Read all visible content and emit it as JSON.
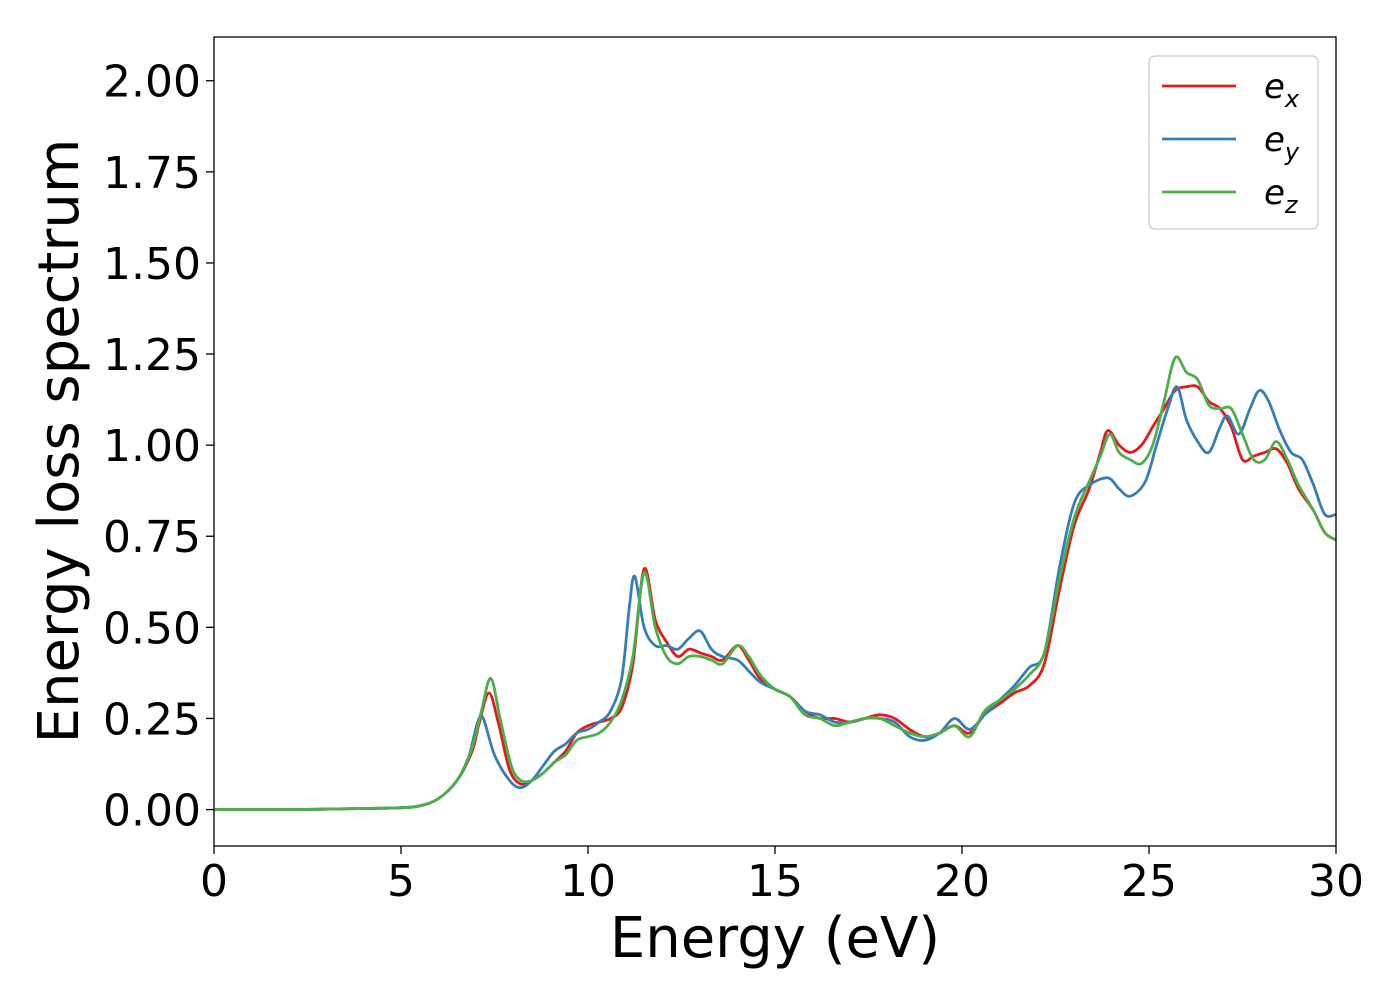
{
  "chart_data": {
    "type": "line",
    "xlabel": "Energy (eV)",
    "ylabel": "Energy loss spectrum",
    "xlim": [
      0,
      30
    ],
    "ylim": [
      -0.1,
      2.12
    ],
    "x_ticks": [
      "0",
      "5",
      "10",
      "15",
      "20",
      "25",
      "30"
    ],
    "y_ticks": [
      "0.00",
      "0.25",
      "0.50",
      "0.75",
      "1.00",
      "1.25",
      "1.50",
      "1.75",
      "2.00"
    ],
    "grid": false,
    "legend_position": "top-right",
    "series": [
      {
        "name": "e_x",
        "legend_base": "e",
        "legend_sub": "x",
        "color": "#e41a1c",
        "points": [
          [
            0,
            0
          ],
          [
            2,
            0
          ],
          [
            4,
            0.003
          ],
          [
            5,
            0.005
          ],
          [
            5.5,
            0.01
          ],
          [
            6,
            0.03
          ],
          [
            6.5,
            0.08
          ],
          [
            6.9,
            0.16
          ],
          [
            7.1,
            0.24
          ],
          [
            7.35,
            0.32
          ],
          [
            7.6,
            0.24
          ],
          [
            7.9,
            0.11
          ],
          [
            8.2,
            0.07
          ],
          [
            8.5,
            0.08
          ],
          [
            8.8,
            0.1
          ],
          [
            9.1,
            0.13
          ],
          [
            9.4,
            0.16
          ],
          [
            9.7,
            0.21
          ],
          [
            10,
            0.23
          ],
          [
            10.3,
            0.24
          ],
          [
            10.6,
            0.25
          ],
          [
            10.9,
            0.28
          ],
          [
            11.2,
            0.4
          ],
          [
            11.5,
            0.66
          ],
          [
            11.8,
            0.52
          ],
          [
            12.1,
            0.46
          ],
          [
            12.4,
            0.42
          ],
          [
            12.7,
            0.44
          ],
          [
            13,
            0.43
          ],
          [
            13.3,
            0.42
          ],
          [
            13.6,
            0.41
          ],
          [
            14,
            0.45
          ],
          [
            14.3,
            0.41
          ],
          [
            14.6,
            0.36
          ],
          [
            15,
            0.33
          ],
          [
            15.4,
            0.31
          ],
          [
            15.8,
            0.27
          ],
          [
            16.2,
            0.25
          ],
          [
            16.6,
            0.25
          ],
          [
            17,
            0.24
          ],
          [
            17.4,
            0.25
          ],
          [
            17.8,
            0.26
          ],
          [
            18.2,
            0.25
          ],
          [
            18.6,
            0.22
          ],
          [
            19,
            0.2
          ],
          [
            19.4,
            0.21
          ],
          [
            19.8,
            0.23
          ],
          [
            20.2,
            0.21
          ],
          [
            20.6,
            0.26
          ],
          [
            21,
            0.29
          ],
          [
            21.4,
            0.32
          ],
          [
            21.8,
            0.34
          ],
          [
            22.2,
            0.4
          ],
          [
            22.6,
            0.6
          ],
          [
            23,
            0.78
          ],
          [
            23.4,
            0.88
          ],
          [
            23.7,
            0.98
          ],
          [
            23.9,
            1.04
          ],
          [
            24.2,
            1.0
          ],
          [
            24.5,
            0.98
          ],
          [
            24.8,
            1.0
          ],
          [
            25.1,
            1.05
          ],
          [
            25.4,
            1.1
          ],
          [
            25.7,
            1.15
          ],
          [
            26,
            1.16
          ],
          [
            26.3,
            1.16
          ],
          [
            26.6,
            1.12
          ],
          [
            26.9,
            1.1
          ],
          [
            27.2,
            1.05
          ],
          [
            27.5,
            0.96
          ],
          [
            27.8,
            0.97
          ],
          [
            28.1,
            0.98
          ],
          [
            28.4,
            0.99
          ],
          [
            28.7,
            0.95
          ],
          [
            29,
            0.88
          ],
          [
            29.4,
            0.82
          ],
          [
            29.7,
            0.76
          ],
          [
            30,
            0.74
          ]
        ]
      },
      {
        "name": "e_y",
        "legend_base": "e",
        "legend_sub": "y",
        "color": "#377eb8",
        "points": [
          [
            0,
            0
          ],
          [
            2,
            0
          ],
          [
            4,
            0.003
          ],
          [
            5,
            0.005
          ],
          [
            5.5,
            0.01
          ],
          [
            6,
            0.03
          ],
          [
            6.5,
            0.08
          ],
          [
            6.8,
            0.14
          ],
          [
            7.05,
            0.24
          ],
          [
            7.2,
            0.25
          ],
          [
            7.5,
            0.15
          ],
          [
            7.9,
            0.08
          ],
          [
            8.2,
            0.06
          ],
          [
            8.5,
            0.08
          ],
          [
            8.8,
            0.12
          ],
          [
            9.1,
            0.16
          ],
          [
            9.4,
            0.18
          ],
          [
            9.7,
            0.21
          ],
          [
            10,
            0.22
          ],
          [
            10.3,
            0.24
          ],
          [
            10.6,
            0.27
          ],
          [
            10.9,
            0.36
          ],
          [
            11.1,
            0.55
          ],
          [
            11.25,
            0.64
          ],
          [
            11.5,
            0.5
          ],
          [
            11.8,
            0.45
          ],
          [
            12.1,
            0.45
          ],
          [
            12.4,
            0.44
          ],
          [
            12.7,
            0.47
          ],
          [
            13,
            0.49
          ],
          [
            13.3,
            0.44
          ],
          [
            13.6,
            0.42
          ],
          [
            14,
            0.41
          ],
          [
            14.3,
            0.38
          ],
          [
            14.6,
            0.35
          ],
          [
            15,
            0.33
          ],
          [
            15.4,
            0.31
          ],
          [
            15.8,
            0.27
          ],
          [
            16.2,
            0.26
          ],
          [
            16.6,
            0.24
          ],
          [
            17,
            0.24
          ],
          [
            17.4,
            0.25
          ],
          [
            17.8,
            0.25
          ],
          [
            18.2,
            0.24
          ],
          [
            18.6,
            0.2
          ],
          [
            19,
            0.19
          ],
          [
            19.4,
            0.21
          ],
          [
            19.8,
            0.25
          ],
          [
            20.2,
            0.22
          ],
          [
            20.6,
            0.26
          ],
          [
            21,
            0.3
          ],
          [
            21.4,
            0.34
          ],
          [
            21.8,
            0.39
          ],
          [
            22.2,
            0.43
          ],
          [
            22.6,
            0.66
          ],
          [
            23,
            0.84
          ],
          [
            23.4,
            0.89
          ],
          [
            23.9,
            0.91
          ],
          [
            24.2,
            0.88
          ],
          [
            24.5,
            0.86
          ],
          [
            24.9,
            0.9
          ],
          [
            25.2,
            1.0
          ],
          [
            25.5,
            1.1
          ],
          [
            25.75,
            1.16
          ],
          [
            26,
            1.07
          ],
          [
            26.3,
            1.01
          ],
          [
            26.6,
            0.98
          ],
          [
            26.9,
            1.05
          ],
          [
            27.1,
            1.08
          ],
          [
            27.4,
            1.03
          ],
          [
            27.7,
            1.1
          ],
          [
            27.95,
            1.15
          ],
          [
            28.2,
            1.12
          ],
          [
            28.5,
            1.04
          ],
          [
            28.8,
            0.98
          ],
          [
            29.1,
            0.96
          ],
          [
            29.4,
            0.89
          ],
          [
            29.7,
            0.81
          ],
          [
            30,
            0.81
          ]
        ]
      },
      {
        "name": "e_z",
        "legend_base": "e",
        "legend_sub": "z",
        "color": "#4daf4a",
        "points": [
          [
            0,
            0
          ],
          [
            2,
            0
          ],
          [
            4,
            0.003
          ],
          [
            5,
            0.005
          ],
          [
            5.5,
            0.01
          ],
          [
            6,
            0.03
          ],
          [
            6.5,
            0.08
          ],
          [
            6.9,
            0.17
          ],
          [
            7.15,
            0.27
          ],
          [
            7.4,
            0.36
          ],
          [
            7.65,
            0.25
          ],
          [
            7.95,
            0.12
          ],
          [
            8.2,
            0.08
          ],
          [
            8.5,
            0.08
          ],
          [
            8.8,
            0.1
          ],
          [
            9.1,
            0.13
          ],
          [
            9.4,
            0.15
          ],
          [
            9.7,
            0.19
          ],
          [
            10,
            0.2
          ],
          [
            10.3,
            0.21
          ],
          [
            10.6,
            0.24
          ],
          [
            10.9,
            0.3
          ],
          [
            11.2,
            0.42
          ],
          [
            11.5,
            0.65
          ],
          [
            11.8,
            0.5
          ],
          [
            12.1,
            0.42
          ],
          [
            12.4,
            0.4
          ],
          [
            12.7,
            0.42
          ],
          [
            13,
            0.42
          ],
          [
            13.3,
            0.41
          ],
          [
            13.6,
            0.4
          ],
          [
            14,
            0.45
          ],
          [
            14.3,
            0.42
          ],
          [
            14.6,
            0.37
          ],
          [
            15,
            0.33
          ],
          [
            15.4,
            0.31
          ],
          [
            15.8,
            0.26
          ],
          [
            16.2,
            0.25
          ],
          [
            16.6,
            0.23
          ],
          [
            17,
            0.24
          ],
          [
            17.4,
            0.25
          ],
          [
            17.8,
            0.25
          ],
          [
            18.2,
            0.23
          ],
          [
            18.6,
            0.21
          ],
          [
            19,
            0.2
          ],
          [
            19.4,
            0.21
          ],
          [
            19.8,
            0.23
          ],
          [
            20.2,
            0.2
          ],
          [
            20.6,
            0.27
          ],
          [
            21,
            0.3
          ],
          [
            21.4,
            0.33
          ],
          [
            21.8,
            0.37
          ],
          [
            22.2,
            0.43
          ],
          [
            22.6,
            0.63
          ],
          [
            23,
            0.8
          ],
          [
            23.4,
            0.9
          ],
          [
            23.7,
            0.97
          ],
          [
            23.95,
            1.03
          ],
          [
            24.2,
            0.98
          ],
          [
            24.5,
            0.96
          ],
          [
            24.8,
            0.95
          ],
          [
            25.1,
            1.0
          ],
          [
            25.4,
            1.12
          ],
          [
            25.7,
            1.24
          ],
          [
            26,
            1.2
          ],
          [
            26.3,
            1.18
          ],
          [
            26.6,
            1.11
          ],
          [
            26.9,
            1.1
          ],
          [
            27.2,
            1.1
          ],
          [
            27.5,
            1.03
          ],
          [
            27.8,
            0.96
          ],
          [
            28.1,
            0.96
          ],
          [
            28.4,
            1.01
          ],
          [
            28.7,
            0.96
          ],
          [
            29,
            0.89
          ],
          [
            29.4,
            0.82
          ],
          [
            29.7,
            0.76
          ],
          [
            30,
            0.74
          ]
        ]
      }
    ]
  }
}
